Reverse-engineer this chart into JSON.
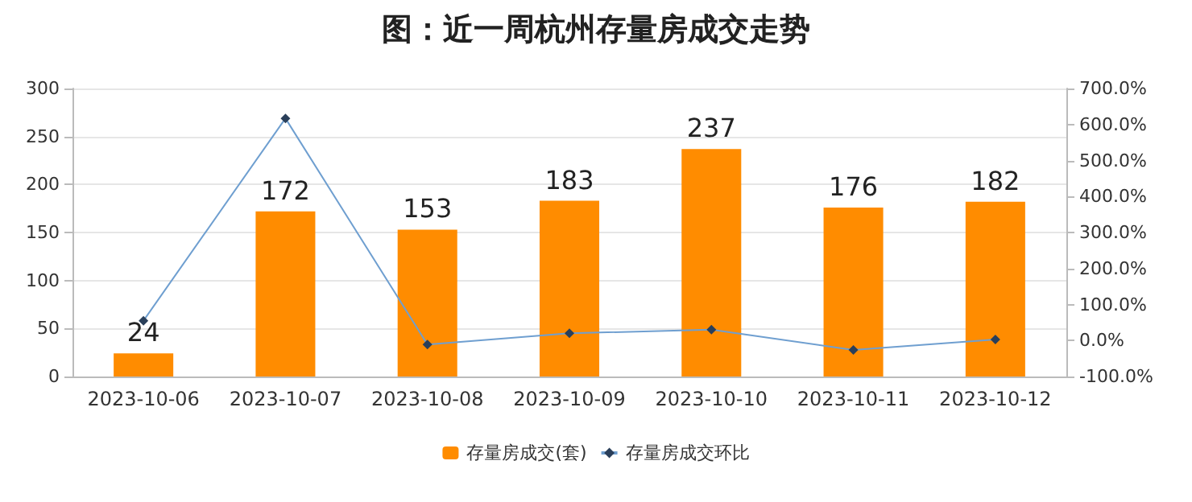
{
  "chart_data": {
    "type": "bar",
    "title": "图：近一周杭州存量房成交走势",
    "categories": [
      "2023-10-06",
      "2023-10-07",
      "2023-10-08",
      "2023-10-09",
      "2023-10-10",
      "2023-10-11",
      "2023-10-12"
    ],
    "series": [
      {
        "name": "存量房成交(套)",
        "color": "#ff8c00",
        "values": [
          24,
          172,
          153,
          183,
          237,
          176,
          182
        ],
        "data_labels": true
      },
      {
        "name": "存量房成交环比",
        "type": "line",
        "axis": "y2",
        "color": "#6f9fd0",
        "marker": "diamond",
        "values": [
          55,
          617,
          -11,
          20,
          30,
          -26,
          3
        ]
      }
    ],
    "ylim": [
      0,
      300
    ],
    "yticks": [
      0,
      50,
      100,
      150,
      200,
      250,
      300
    ],
    "y2lim": [
      -100,
      700
    ],
    "y2ticks": [
      {
        "value": -100,
        "label": "-100.0%"
      },
      {
        "value": 0,
        "label": "0.0%"
      },
      {
        "value": 100,
        "label": "100.0%"
      },
      {
        "value": 200,
        "label": "200.0%"
      },
      {
        "value": 300,
        "label": "300.0%"
      },
      {
        "value": 400,
        "label": "400.0%"
      },
      {
        "value": 500,
        "label": "500.0%"
      },
      {
        "value": 600,
        "label": "600.0%"
      },
      {
        "value": 700,
        "label": "700.0%"
      }
    ],
    "grid": "y",
    "legend": "bottom"
  }
}
